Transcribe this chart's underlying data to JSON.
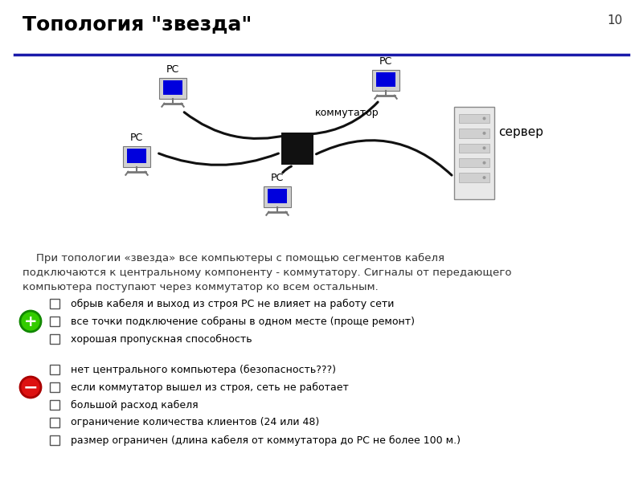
{
  "title": "Топология \"звезда\"",
  "slide_number": "10",
  "background_color": "#ffffff",
  "title_color": "#000000",
  "title_fontsize": 18,
  "line_color": "#1a1aaa",
  "description_line1": "    При топологии «звезда» все компьютеры с помощью сегментов кабеля",
  "description_line2": "подключаются к центральному компоненту - коммутатору. Сигналы от передающего",
  "description_line3": "компьютера поступают через коммутатор ко всем остальным.",
  "pros": [
    "обрыв кабеля и выход из строя РС не влияет на работу сети",
    "все точки подключение собраны в одном месте (проще ремонт)",
    "хорошая пропускная способность"
  ],
  "cons": [
    "нет центрального компьютера (безопасность???)",
    "если коммутатор вышел из строя, сеть не работает",
    "большой расход кабеля",
    "ограничение количества клиентов (24 или 48)",
    "размер ограничен (длина кабеля от коммутатора до РС не более 100 м.)"
  ],
  "pc_label": "РС",
  "switch_label": "коммутатор",
  "server_label": "сервер",
  "cable_color": "#111111",
  "cable_lw": 2.2,
  "switch_color": "#111111",
  "monitor_body_color": "#cccccc",
  "monitor_screen_color": "#0000cc",
  "server_body_color": "#e0e0e0",
  "server_detail_color": "#aaaaaa"
}
